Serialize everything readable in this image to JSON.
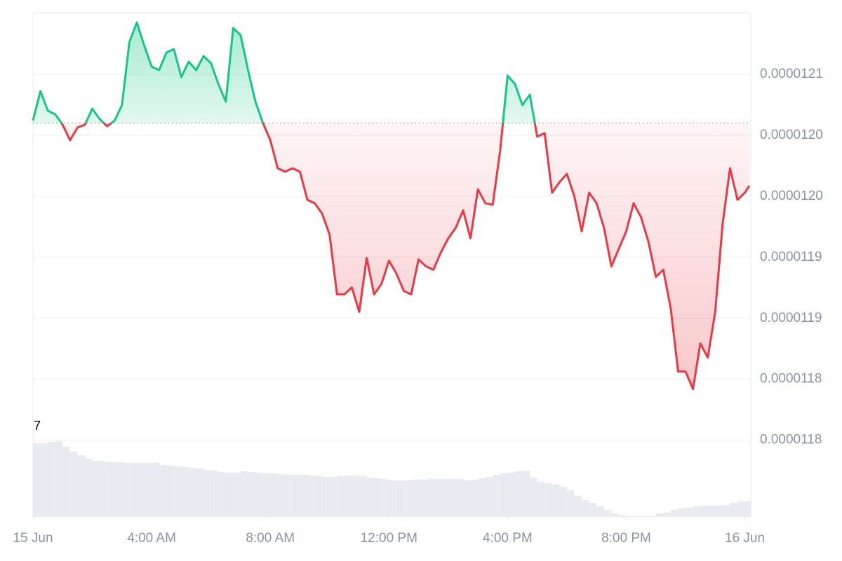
{
  "chart_data": {
    "type": "line",
    "x": [
      0,
      0.25,
      0.5,
      0.75,
      1,
      1.25,
      1.5,
      1.75,
      2,
      2.25,
      2.5,
      2.75,
      3,
      3.25,
      3.5,
      3.75,
      4,
      4.25,
      4.5,
      4.75,
      5,
      5.25,
      5.5,
      5.75,
      6,
      6.25,
      6.5,
      6.75,
      7,
      7.25,
      7.5,
      7.75,
      8,
      8.25,
      8.5,
      8.75,
      9,
      9.25,
      9.5,
      9.75,
      10,
      10.25,
      10.5,
      10.75,
      11,
      11.25,
      11.5,
      11.75,
      12,
      12.25,
      12.5,
      12.75,
      13,
      13.25,
      13.5,
      13.75,
      14,
      14.25,
      14.5,
      14.75,
      15,
      15.25,
      15.5,
      15.75,
      16,
      16.25,
      16.5,
      16.75,
      17,
      17.25,
      17.5,
      17.75,
      18,
      18.25,
      18.5,
      18.75,
      19,
      19.25,
      19.5,
      19.75,
      20,
      20.25,
      20.5,
      20.75,
      21,
      21.25,
      21.5,
      21.75,
      22,
      22.25,
      22.5,
      22.75,
      23,
      23.25,
      23.5,
      23.75,
      24,
      24.15
    ],
    "values": [
      1.20621e-05,
      1.20862e-05,
      1.20701e-05,
      1.20672e-05,
      1.20586e-05,
      1.2046e-05,
      1.20563e-05,
      1.20586e-05,
      1.20718e-05,
      1.20632e-05,
      1.20575e-05,
      1.20621e-05,
      1.20747e-05,
      1.21264e-05,
      1.21425e-05,
      1.21236e-05,
      1.21063e-05,
      1.21034e-05,
      1.21178e-05,
      1.21207e-05,
      1.20977e-05,
      1.21103e-05,
      1.21034e-05,
      1.21149e-05,
      1.21092e-05,
      1.2092e-05,
      1.20776e-05,
      1.21379e-05,
      1.21322e-05,
      1.21034e-05,
      1.20776e-05,
      1.20603e-05,
      1.2046e-05,
      1.2023e-05,
      1.20201e-05,
      1.2023e-05,
      1.20201e-05,
      1.19971e-05,
      1.19943e-05,
      1.19856e-05,
      1.19684e-05,
      1.19195e-05,
      1.19195e-05,
      1.19253e-05,
      1.19052e-05,
      1.19494e-05,
      1.19195e-05,
      1.19282e-05,
      1.19471e-05,
      1.19368e-05,
      1.19224e-05,
      1.19195e-05,
      1.19483e-05,
      1.19425e-05,
      1.19397e-05,
      1.1954e-05,
      1.19655e-05,
      1.19741e-05,
      1.19885e-05,
      1.19655e-05,
      1.20057e-05,
      1.19943e-05,
      1.19931e-05,
      1.20374e-05,
      1.20989e-05,
      1.2092e-05,
      1.20747e-05,
      1.20833e-05,
      1.20489e-05,
      1.20517e-05,
      1.20029e-05,
      1.20115e-05,
      1.20184e-05,
      1.2e-05,
      1.19713e-05,
      1.20029e-05,
      1.19943e-05,
      1.19741e-05,
      1.19425e-05,
      1.19569e-05,
      1.19713e-05,
      1.19943e-05,
      1.19828e-05,
      1.19626e-05,
      1.19339e-05,
      1.19397e-05,
      1.19081e-05,
      1.18563e-05,
      1.18563e-05,
      1.1842e-05,
      1.18793e-05,
      1.18678e-05,
      1.19052e-05,
      1.1977e-05,
      1.2023e-05,
      1.19971e-05,
      1.20029e-05,
      1.20086e-05
    ],
    "baseline": 1.206e-05,
    "up_color": "#16c784",
    "down_color": "#ea3943",
    "volume": {
      "values": [
        105,
        105,
        107,
        108,
        100,
        93,
        88,
        83,
        80,
        79,
        78,
        78,
        77,
        77,
        77,
        77,
        77,
        74,
        73,
        72,
        71,
        70,
        69,
        67,
        66,
        64,
        63,
        63,
        65,
        64,
        63,
        62,
        62,
        61,
        60,
        60,
        60,
        59,
        58,
        57,
        57,
        58,
        59,
        59,
        58,
        56,
        55,
        54,
        52,
        52,
        52,
        53,
        53,
        54,
        54,
        54,
        54,
        54,
        52,
        53,
        55,
        57,
        60,
        62,
        63,
        65,
        66,
        56,
        50,
        48,
        46,
        43,
        38,
        30,
        24,
        20,
        15,
        10,
        5,
        2,
        1,
        1,
        1,
        1,
        5,
        6,
        10,
        12,
        13,
        15,
        16,
        16,
        16,
        17,
        20,
        22,
        22,
        23
      ],
      "color": "#e8ecf1",
      "vlim": [
        0,
        110
      ]
    },
    "volume_label": "7",
    "xlim": [
      0,
      24.2
    ],
    "xticks": [
      {
        "value": 0,
        "label": "15 Jun"
      },
      {
        "value": 4,
        "label": "4:00 AM"
      },
      {
        "value": 8,
        "label": "8:00 AM"
      },
      {
        "value": 12,
        "label": "12:00 PM"
      },
      {
        "value": 16,
        "label": "4:00 PM"
      },
      {
        "value": 20,
        "label": "8:00 PM"
      },
      {
        "value": 24,
        "label": "16 Jun"
      }
    ],
    "ylim": [
      1.174e-05,
      1.215e-05
    ],
    "yticks": [
      1.21e-05,
      {
        "value": 1.205e-05,
        "label": "0.0000120"
      },
      {
        "value": 1.2e-05,
        "label": "0.0000120"
      },
      {
        "value": 1.195e-05,
        "label": "0.0000119"
      },
      1.19e-05,
      {
        "value": 1.185e-05,
        "label": "0.0000118"
      },
      1.18e-05
    ],
    "grid": true
  }
}
